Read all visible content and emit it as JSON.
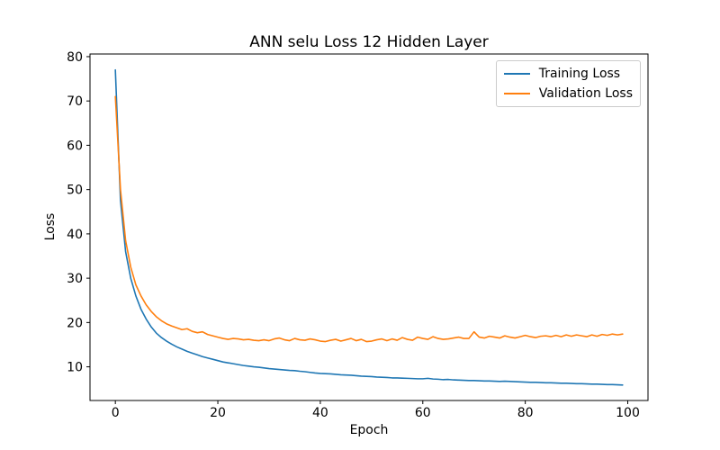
{
  "chart_data": {
    "type": "line",
    "title": "ANN selu Loss 12 Hidden Layer",
    "xlabel": "Epoch",
    "ylabel": "Loss",
    "xlim": [
      -4.95,
      103.95
    ],
    "ylim": [
      2.4,
      80.6
    ],
    "xticks": [
      0,
      20,
      40,
      60,
      80,
      100
    ],
    "yticks": [
      10,
      20,
      30,
      40,
      50,
      60,
      70,
      80
    ],
    "grid": false,
    "legend_position": "upper right",
    "x_range": [
      0,
      99
    ],
    "series": [
      {
        "name": "Training Loss",
        "color": "#1f77b4",
        "values": [
          77.0,
          47.5,
          36.0,
          30.0,
          26.0,
          23.0,
          20.8,
          19.0,
          17.6,
          16.6,
          15.8,
          15.1,
          14.5,
          14.0,
          13.5,
          13.1,
          12.7,
          12.3,
          12.0,
          11.7,
          11.4,
          11.1,
          10.9,
          10.7,
          10.5,
          10.3,
          10.15,
          10.0,
          9.9,
          9.75,
          9.6,
          9.5,
          9.4,
          9.3,
          9.2,
          9.15,
          9.0,
          8.9,
          8.75,
          8.6,
          8.5,
          8.45,
          8.4,
          8.3,
          8.2,
          8.15,
          8.1,
          8.0,
          7.9,
          7.85,
          7.8,
          7.7,
          7.65,
          7.6,
          7.5,
          7.5,
          7.45,
          7.4,
          7.35,
          7.3,
          7.3,
          7.4,
          7.25,
          7.2,
          7.1,
          7.15,
          7.05,
          7.0,
          6.95,
          6.9,
          6.9,
          6.85,
          6.8,
          6.8,
          6.75,
          6.7,
          6.75,
          6.7,
          6.65,
          6.6,
          6.55,
          6.5,
          6.5,
          6.45,
          6.4,
          6.4,
          6.35,
          6.3,
          6.3,
          6.25,
          6.2,
          6.2,
          6.15,
          6.1,
          6.1,
          6.05,
          6.0,
          6.0,
          5.95,
          5.9
        ]
      },
      {
        "name": "Validation Loss",
        "color": "#ff7f0e",
        "values": [
          71.0,
          50.0,
          38.5,
          32.5,
          28.5,
          26.0,
          24.0,
          22.5,
          21.3,
          20.4,
          19.7,
          19.2,
          18.8,
          18.4,
          18.6,
          18.0,
          17.7,
          17.9,
          17.3,
          17.0,
          16.7,
          16.4,
          16.2,
          16.4,
          16.3,
          16.1,
          16.2,
          16.0,
          15.9,
          16.1,
          15.9,
          16.3,
          16.5,
          16.1,
          15.9,
          16.4,
          16.1,
          16.0,
          16.3,
          16.1,
          15.8,
          15.7,
          16.0,
          16.2,
          15.8,
          16.1,
          16.4,
          15.9,
          16.2,
          15.7,
          15.8,
          16.1,
          16.3,
          15.9,
          16.3,
          16.0,
          16.6,
          16.2,
          16.0,
          16.7,
          16.4,
          16.2,
          16.8,
          16.4,
          16.2,
          16.3,
          16.5,
          16.7,
          16.4,
          16.4,
          17.9,
          16.7,
          16.5,
          16.9,
          16.7,
          16.5,
          17.0,
          16.7,
          16.5,
          16.8,
          17.1,
          16.8,
          16.6,
          16.9,
          17.0,
          16.8,
          17.1,
          16.8,
          17.2,
          16.9,
          17.2,
          17.0,
          16.8,
          17.2,
          16.9,
          17.3,
          17.1,
          17.4,
          17.2,
          17.4
        ]
      }
    ]
  }
}
